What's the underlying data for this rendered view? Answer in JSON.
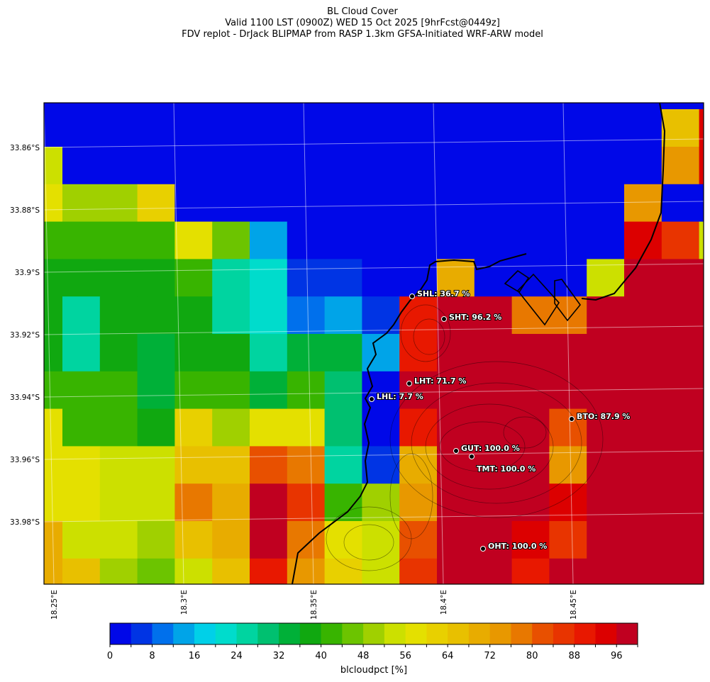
{
  "titles": {
    "line1": "BL Cloud Cover",
    "line2": "Valid 1100 LST (0900Z) WED 15 Oct 2025 [9hrFcst@0449z]",
    "line3": "FDV replot - DrJack BLIPMAP from RASP 1.3km GFSA-Initiated WRF-ARW model"
  },
  "chart_data": {
    "type": "heatmap",
    "title": "BL Cloud Cover",
    "colorbar_label": "blcloudpct [%]",
    "colorbar_ticks": [
      "0",
      "8",
      "16",
      "24",
      "32",
      "40",
      "48",
      "56",
      "64",
      "72",
      "80",
      "88",
      "96"
    ],
    "value_range": [
      0,
      100
    ],
    "bin_width": 4,
    "colormap": [
      "#0008e8",
      "#0034e4",
      "#0070ec",
      "#00a4e8",
      "#00d0e8",
      "#00dccc",
      "#00d4a0",
      "#00c070",
      "#00b038",
      "#10a810",
      "#38b400",
      "#6cc400",
      "#a0d000",
      "#cce000",
      "#e4e000",
      "#e8d000",
      "#e8c000",
      "#e8ac00",
      "#e89800",
      "#e87800",
      "#e85000",
      "#e83400",
      "#e81800",
      "#dc0000",
      "#c00020"
    ],
    "lat_labels": [
      "33.86°S",
      "33.88°S",
      "33.9°S",
      "33.92°S",
      "33.94°S",
      "33.96°S",
      "33.98°S"
    ],
    "lon_labels": [
      "18.25°E",
      "18.3°E",
      "18.35°E",
      "18.4°E",
      "18.45°E"
    ],
    "grid": [
      [
        2,
        2,
        2,
        2,
        2,
        2,
        2,
        2,
        2,
        2,
        2,
        2,
        2,
        2,
        2,
        2,
        2,
        2,
        2
      ],
      [
        2,
        2,
        2,
        2,
        2,
        2,
        2,
        2,
        2,
        2,
        2,
        2,
        2,
        2,
        2,
        2,
        2,
        66,
        94
      ],
      [
        54,
        2,
        2,
        2,
        2,
        2,
        2,
        2,
        2,
        2,
        2,
        2,
        2,
        2,
        2,
        2,
        2,
        74,
        94
      ],
      [
        58,
        50,
        50,
        62,
        2,
        2,
        2,
        2,
        2,
        2,
        2,
        2,
        2,
        2,
        2,
        2,
        74,
        2,
        2
      ],
      [
        42,
        42,
        42,
        42,
        58,
        46,
        14,
        2,
        2,
        2,
        2,
        2,
        2,
        2,
        2,
        2,
        94,
        86,
        54
      ],
      [
        38,
        38,
        38,
        38,
        42,
        26,
        22,
        6,
        6,
        2,
        2,
        70,
        2,
        2,
        2,
        54,
        98,
        98,
        98
      ],
      [
        38,
        26,
        38,
        38,
        38,
        26,
        22,
        10,
        14,
        6,
        90,
        98,
        98,
        78,
        78,
        98,
        98,
        98,
        98
      ],
      [
        38,
        26,
        38,
        34,
        38,
        38,
        26,
        34,
        34,
        14,
        90,
        98,
        98,
        98,
        98,
        98,
        98,
        98,
        98
      ],
      [
        42,
        42,
        42,
        34,
        42,
        42,
        34,
        42,
        30,
        2,
        98,
        98,
        98,
        98,
        98,
        98,
        98,
        98,
        98
      ],
      [
        58,
        42,
        42,
        38,
        62,
        50,
        58,
        58,
        30,
        2,
        90,
        98,
        98,
        98,
        82,
        98,
        98,
        98,
        98
      ],
      [
        58,
        58,
        54,
        54,
        66,
        66,
        82,
        78,
        26,
        6,
        70,
        98,
        98,
        98,
        74,
        98,
        98,
        98,
        98
      ],
      [
        58,
        58,
        54,
        54,
        78,
        70,
        98,
        86,
        42,
        50,
        74,
        98,
        98,
        98,
        94,
        98,
        98,
        98,
        98
      ],
      [
        70,
        54,
        54,
        50,
        66,
        70,
        98,
        78,
        58,
        54,
        82,
        98,
        98,
        94,
        86,
        98,
        98,
        98,
        98
      ],
      [
        70,
        66,
        50,
        46,
        54,
        66,
        90,
        74,
        62,
        54,
        86,
        98,
        98,
        90,
        98,
        98,
        98,
        98,
        98
      ]
    ],
    "stations": [
      {
        "label": "SHL: 36.7 %",
        "value": 36.7
      },
      {
        "label": "SHT: 96.2 %",
        "value": 96.2
      },
      {
        "label": "LHT: 71.7 %",
        "value": 71.7
      },
      {
        "label": "LHL: 7.7 %",
        "value": 7.7
      },
      {
        "label": "BTO: 87.9 %",
        "value": 87.9
      },
      {
        "label": "GUT: 100.0 %",
        "value": 100.0
      },
      {
        "label": "TMT: 100.0 %",
        "value": 100.0
      },
      {
        "label": "OHT: 100.0 %",
        "value": 100.0
      }
    ]
  }
}
